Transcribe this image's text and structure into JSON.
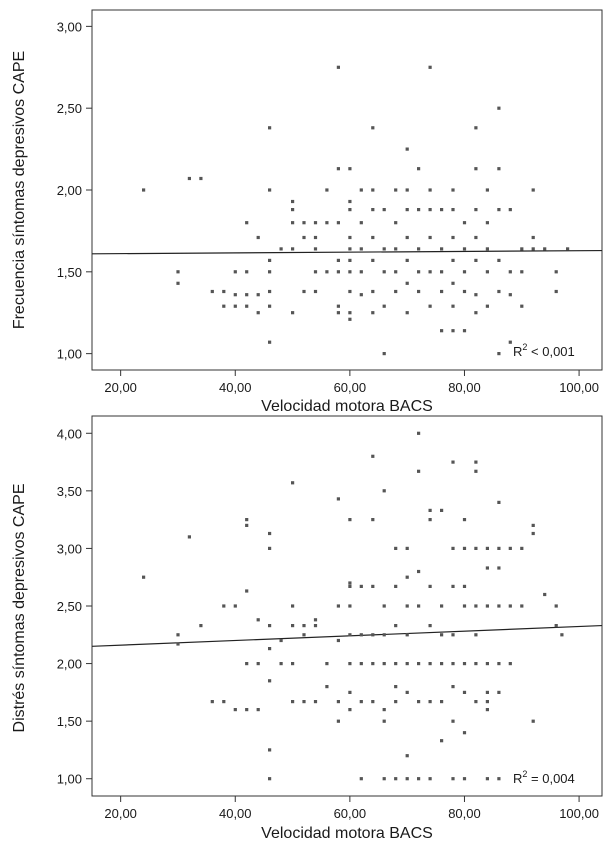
{
  "chart_data": [
    {
      "type": "scatter",
      "xlabel": "Velocidad motora BACS",
      "ylabel": "Frecuencia síntomas depresivos CAPE",
      "xlim": [
        15,
        104
      ],
      "ylim": [
        0.9,
        3.1
      ],
      "xticks": [
        20,
        40,
        60,
        80,
        100
      ],
      "yticks": [
        1,
        1.5,
        2,
        2.5,
        3
      ],
      "xtick_labels": [
        "20,00",
        "40,00",
        "60,00",
        "80,00",
        "100,00"
      ],
      "ytick_labels": [
        "1,00",
        "1,50",
        "2,00",
        "2,50",
        "3,00"
      ],
      "annotation_base": "R",
      "annotation_sup": "2",
      "annotation_rest": " < 0,001",
      "fit_line": {
        "x": [
          15,
          104
        ],
        "y": [
          1.61,
          1.63
        ]
      },
      "grid": false,
      "marker_color": "#555555",
      "points": [
        [
          24,
          2.0
        ],
        [
          30,
          1.5
        ],
        [
          30,
          1.43
        ],
        [
          32,
          2.07
        ],
        [
          34,
          2.07
        ],
        [
          36,
          1.38
        ],
        [
          38,
          1.38
        ],
        [
          38,
          1.29
        ],
        [
          40,
          1.5
        ],
        [
          40,
          1.36
        ],
        [
          40,
          1.29
        ],
        [
          42,
          1.8
        ],
        [
          42,
          1.5
        ],
        [
          42,
          1.36
        ],
        [
          42,
          1.29
        ],
        [
          44,
          1.71
        ],
        [
          44,
          1.36
        ],
        [
          44,
          1.25
        ],
        [
          46,
          2.38
        ],
        [
          46,
          2.0
        ],
        [
          46,
          1.57
        ],
        [
          46,
          1.5
        ],
        [
          46,
          1.38
        ],
        [
          46,
          1.29
        ],
        [
          46,
          1.07
        ],
        [
          48,
          1.64
        ],
        [
          50,
          1.93
        ],
        [
          50,
          1.88
        ],
        [
          50,
          1.8
        ],
        [
          50,
          1.64
        ],
        [
          50,
          1.25
        ],
        [
          52,
          1.8
        ],
        [
          52,
          1.71
        ],
        [
          52,
          1.38
        ],
        [
          54,
          1.8
        ],
        [
          54,
          1.71
        ],
        [
          54,
          1.64
        ],
        [
          54,
          1.5
        ],
        [
          54,
          1.38
        ],
        [
          56,
          2.0
        ],
        [
          56,
          1.8
        ],
        [
          56,
          1.5
        ],
        [
          58,
          2.75
        ],
        [
          58,
          2.13
        ],
        [
          58,
          1.8
        ],
        [
          58,
          1.57
        ],
        [
          58,
          1.5
        ],
        [
          58,
          1.29
        ],
        [
          58,
          1.25
        ],
        [
          60,
          2.13
        ],
        [
          60,
          1.93
        ],
        [
          60,
          1.88
        ],
        [
          60,
          1.71
        ],
        [
          60,
          1.64
        ],
        [
          60,
          1.57
        ],
        [
          60,
          1.5
        ],
        [
          60,
          1.38
        ],
        [
          60,
          1.25
        ],
        [
          60,
          1.21
        ],
        [
          62,
          2.0
        ],
        [
          62,
          1.8
        ],
        [
          62,
          1.64
        ],
        [
          62,
          1.5
        ],
        [
          62,
          1.36
        ],
        [
          64,
          2.38
        ],
        [
          64,
          2.0
        ],
        [
          64,
          1.88
        ],
        [
          64,
          1.71
        ],
        [
          64,
          1.57
        ],
        [
          64,
          1.38
        ],
        [
          64,
          1.25
        ],
        [
          66,
          1.88
        ],
        [
          66,
          1.64
        ],
        [
          66,
          1.5
        ],
        [
          66,
          1.29
        ],
        [
          66,
          1.0
        ],
        [
          68,
          2.0
        ],
        [
          68,
          1.8
        ],
        [
          68,
          1.64
        ],
        [
          68,
          1.5
        ],
        [
          68,
          1.38
        ],
        [
          70,
          2.25
        ],
        [
          70,
          2.0
        ],
        [
          70,
          1.88
        ],
        [
          70,
          1.71
        ],
        [
          70,
          1.57
        ],
        [
          70,
          1.43
        ],
        [
          70,
          1.25
        ],
        [
          72,
          2.13
        ],
        [
          72,
          1.88
        ],
        [
          72,
          1.64
        ],
        [
          72,
          1.5
        ],
        [
          72,
          1.38
        ],
        [
          74,
          2.75
        ],
        [
          74,
          2.0
        ],
        [
          74,
          1.88
        ],
        [
          74,
          1.71
        ],
        [
          74,
          1.5
        ],
        [
          74,
          1.29
        ],
        [
          76,
          1.88
        ],
        [
          76,
          1.64
        ],
        [
          76,
          1.5
        ],
        [
          76,
          1.38
        ],
        [
          76,
          1.14
        ],
        [
          78,
          2.0
        ],
        [
          78,
          1.88
        ],
        [
          78,
          1.71
        ],
        [
          78,
          1.57
        ],
        [
          78,
          1.43
        ],
        [
          78,
          1.29
        ],
        [
          78,
          1.14
        ],
        [
          80,
          1.8
        ],
        [
          80,
          1.64
        ],
        [
          80,
          1.5
        ],
        [
          80,
          1.38
        ],
        [
          80,
          1.14
        ],
        [
          82,
          2.38
        ],
        [
          82,
          2.13
        ],
        [
          82,
          1.88
        ],
        [
          82,
          1.71
        ],
        [
          82,
          1.57
        ],
        [
          82,
          1.36
        ],
        [
          82,
          1.25
        ],
        [
          84,
          2.0
        ],
        [
          84,
          1.8
        ],
        [
          84,
          1.64
        ],
        [
          84,
          1.5
        ],
        [
          84,
          1.29
        ],
        [
          86,
          2.5
        ],
        [
          86,
          2.13
        ],
        [
          86,
          1.88
        ],
        [
          86,
          1.57
        ],
        [
          86,
          1.38
        ],
        [
          86,
          1.0
        ],
        [
          88,
          1.88
        ],
        [
          88,
          1.5
        ],
        [
          88,
          1.36
        ],
        [
          88,
          1.07
        ],
        [
          90,
          1.64
        ],
        [
          90,
          1.5
        ],
        [
          90,
          1.29
        ],
        [
          92,
          2.0
        ],
        [
          92,
          1.71
        ],
        [
          92,
          1.64
        ],
        [
          94,
          1.64
        ],
        [
          96,
          1.5
        ],
        [
          96,
          1.38
        ],
        [
          98,
          1.64
        ]
      ]
    },
    {
      "type": "scatter",
      "xlabel": "Velocidad motora BACS",
      "ylabel": "Distrés síntomas depresivos CAPE",
      "xlim": [
        15,
        104
      ],
      "ylim": [
        0.85,
        4.15
      ],
      "xticks": [
        20,
        40,
        60,
        80,
        100
      ],
      "yticks": [
        1,
        1.5,
        2,
        2.5,
        3,
        3.5,
        4
      ],
      "xtick_labels": [
        "20,00",
        "40,00",
        "60,00",
        "80,00",
        "100,00"
      ],
      "ytick_labels": [
        "1,00",
        "1,50",
        "2,00",
        "2,50",
        "3,00",
        "3,50",
        "4,00"
      ],
      "annotation_base": "R",
      "annotation_sup": "2",
      "annotation_rest": " = 0,004",
      "fit_line": {
        "x": [
          15,
          104
        ],
        "y": [
          2.15,
          2.33
        ]
      },
      "grid": false,
      "marker_color": "#555555",
      "points": [
        [
          24,
          2.75
        ],
        [
          30,
          2.25
        ],
        [
          30,
          2.17
        ],
        [
          32,
          3.1
        ],
        [
          34,
          2.33
        ],
        [
          36,
          1.67
        ],
        [
          38,
          2.5
        ],
        [
          38,
          1.67
        ],
        [
          40,
          2.5
        ],
        [
          40,
          1.6
        ],
        [
          42,
          3.25
        ],
        [
          42,
          3.2
        ],
        [
          42,
          2.63
        ],
        [
          42,
          2.0
        ],
        [
          42,
          1.6
        ],
        [
          44,
          2.38
        ],
        [
          44,
          2.0
        ],
        [
          44,
          1.6
        ],
        [
          46,
          3.13
        ],
        [
          46,
          3.0
        ],
        [
          46,
          2.33
        ],
        [
          46,
          2.13
        ],
        [
          46,
          1.85
        ],
        [
          46,
          1.25
        ],
        [
          46,
          1.0
        ],
        [
          48,
          2.2
        ],
        [
          48,
          2.0
        ],
        [
          50,
          3.57
        ],
        [
          50,
          2.5
        ],
        [
          50,
          2.33
        ],
        [
          50,
          2.0
        ],
        [
          50,
          1.67
        ],
        [
          52,
          2.33
        ],
        [
          52,
          2.25
        ],
        [
          52,
          1.67
        ],
        [
          54,
          2.38
        ],
        [
          54,
          2.33
        ],
        [
          54,
          1.67
        ],
        [
          56,
          2.0
        ],
        [
          56,
          1.8
        ],
        [
          58,
          3.43
        ],
        [
          58,
          2.5
        ],
        [
          58,
          2.2
        ],
        [
          58,
          1.67
        ],
        [
          58,
          1.5
        ],
        [
          60,
          3.25
        ],
        [
          60,
          2.7
        ],
        [
          60,
          2.67
        ],
        [
          60,
          2.5
        ],
        [
          60,
          2.25
        ],
        [
          60,
          2.0
        ],
        [
          60,
          1.75
        ],
        [
          60,
          1.6
        ],
        [
          62,
          2.67
        ],
        [
          62,
          2.25
        ],
        [
          62,
          2.0
        ],
        [
          62,
          1.67
        ],
        [
          62,
          1.0
        ],
        [
          64,
          3.8
        ],
        [
          64,
          3.25
        ],
        [
          64,
          2.67
        ],
        [
          64,
          2.25
        ],
        [
          64,
          2.0
        ],
        [
          64,
          1.67
        ],
        [
          66,
          3.5
        ],
        [
          66,
          2.5
        ],
        [
          66,
          2.25
        ],
        [
          66,
          2.0
        ],
        [
          66,
          1.6
        ],
        [
          66,
          1.5
        ],
        [
          66,
          1.0
        ],
        [
          68,
          3.0
        ],
        [
          68,
          2.67
        ],
        [
          68,
          2.33
        ],
        [
          68,
          2.0
        ],
        [
          68,
          1.8
        ],
        [
          68,
          1.67
        ],
        [
          68,
          1.0
        ],
        [
          70,
          3.0
        ],
        [
          70,
          2.75
        ],
        [
          70,
          2.5
        ],
        [
          70,
          2.25
        ],
        [
          70,
          2.0
        ],
        [
          70,
          1.75
        ],
        [
          70,
          1.2
        ],
        [
          70,
          1.0
        ],
        [
          72,
          4.0
        ],
        [
          72,
          3.67
        ],
        [
          72,
          2.8
        ],
        [
          72,
          2.5
        ],
        [
          72,
          2.0
        ],
        [
          72,
          1.67
        ],
        [
          72,
          1.0
        ],
        [
          74,
          3.33
        ],
        [
          74,
          3.25
        ],
        [
          74,
          2.67
        ],
        [
          74,
          2.33
        ],
        [
          74,
          2.0
        ],
        [
          74,
          1.67
        ],
        [
          74,
          1.0
        ],
        [
          76,
          3.33
        ],
        [
          76,
          2.5
        ],
        [
          76,
          2.25
        ],
        [
          76,
          2.0
        ],
        [
          76,
          1.67
        ],
        [
          76,
          1.33
        ],
        [
          78,
          3.75
        ],
        [
          78,
          3.0
        ],
        [
          78,
          2.67
        ],
        [
          78,
          2.25
        ],
        [
          78,
          2.0
        ],
        [
          78,
          1.8
        ],
        [
          78,
          1.5
        ],
        [
          78,
          1.0
        ],
        [
          80,
          3.25
        ],
        [
          80,
          3.0
        ],
        [
          80,
          2.67
        ],
        [
          80,
          2.5
        ],
        [
          80,
          2.0
        ],
        [
          80,
          1.75
        ],
        [
          80,
          1.4
        ],
        [
          80,
          1.0
        ],
        [
          82,
          3.75
        ],
        [
          82,
          3.67
        ],
        [
          82,
          3.0
        ],
        [
          82,
          2.5
        ],
        [
          82,
          2.25
        ],
        [
          82,
          2.0
        ],
        [
          82,
          1.67
        ],
        [
          84,
          3.0
        ],
        [
          84,
          2.83
        ],
        [
          84,
          2.5
        ],
        [
          84,
          2.0
        ],
        [
          84,
          1.75
        ],
        [
          84,
          1.67
        ],
        [
          84,
          1.6
        ],
        [
          84,
          1.0
        ],
        [
          86,
          3.0
        ],
        [
          86,
          2.83
        ],
        [
          86,
          2.5
        ],
        [
          86,
          2.0
        ],
        [
          86,
          1.75
        ],
        [
          86,
          1.0
        ],
        [
          86,
          3.4
        ],
        [
          88,
          3.0
        ],
        [
          88,
          2.5
        ],
        [
          88,
          2.0
        ],
        [
          90,
          3.0
        ],
        [
          90,
          2.5
        ],
        [
          92,
          3.2
        ],
        [
          92,
          3.13
        ],
        [
          92,
          1.5
        ],
        [
          94,
          2.6
        ],
        [
          96,
          2.5
        ],
        [
          96,
          2.33
        ],
        [
          97,
          2.25
        ]
      ]
    }
  ]
}
